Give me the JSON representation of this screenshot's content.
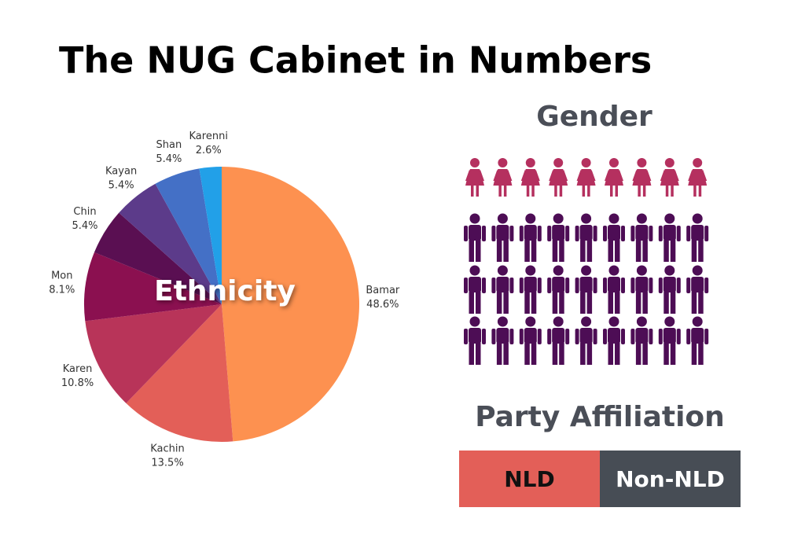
{
  "title": "The NUG Cabinet in Numbers",
  "chart_data": [
    {
      "type": "pie",
      "title": "Ethnicity",
      "categories": [
        "Bamar",
        "Kachin",
        "Karen",
        "Mon",
        "Chin",
        "Kayan",
        "Shan",
        "Karenni"
      ],
      "values": [
        48.6,
        13.5,
        10.8,
        8.1,
        5.4,
        5.4,
        5.4,
        2.6
      ],
      "value_labels": [
        "48.6%",
        "13.5%",
        "10.8%",
        "8.1%",
        "5.4%",
        "5.4%",
        "5.4%",
        "2.6%"
      ],
      "colors": [
        "#fd9150",
        "#e35f58",
        "#b83459",
        "#8b1050",
        "#5a0f52",
        "#5c3b8a",
        "#4470c6",
        "#22a0e8"
      ]
    },
    {
      "type": "pictogram",
      "title": "Gender",
      "values": [
        9,
        27
      ],
      "colors": [
        "#b5305f",
        "#4d0d55"
      ],
      "icons": [
        "woman",
        "man"
      ]
    },
    {
      "type": "stacked-bar",
      "title": "Party Affiliation",
      "categories": [
        "NLD",
        "Non-NLD"
      ],
      "values": [
        50,
        50
      ],
      "colors": [
        "#e35f58",
        "#474d55"
      ],
      "label_colors": [
        "#111111",
        "#ffffff"
      ]
    }
  ]
}
